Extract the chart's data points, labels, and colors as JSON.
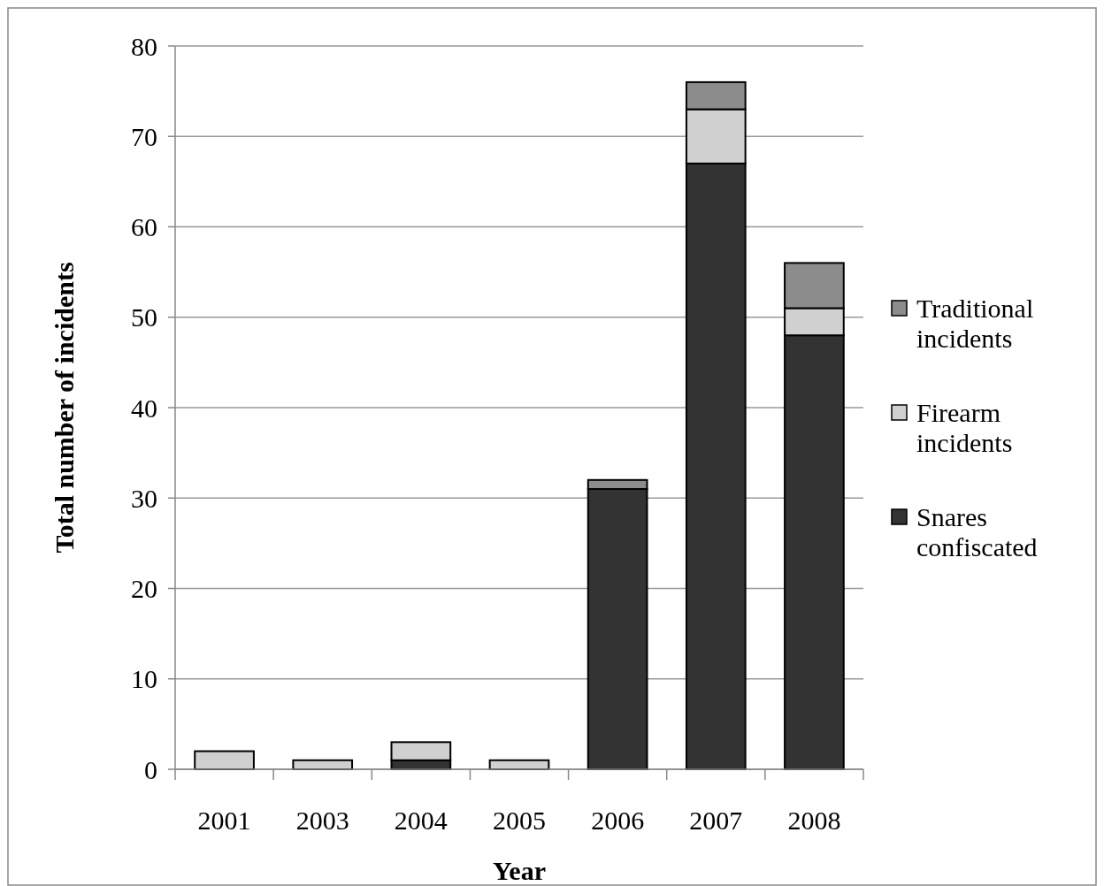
{
  "chart_data": {
    "type": "bar",
    "stacked": true,
    "xlabel": "Year",
    "ylabel": "Total number of incidents",
    "categories": [
      "2001",
      "2003",
      "2004",
      "2005",
      "2006",
      "2007",
      "2008"
    ],
    "series": [
      {
        "name": "Snares confiscated",
        "color": "#333333",
        "values": [
          null,
          null,
          1,
          null,
          31,
          67,
          48
        ]
      },
      {
        "name": "Firearm incidents",
        "color": "#d0d0d0",
        "values": [
          2,
          1,
          2,
          1,
          null,
          6,
          3
        ]
      },
      {
        "name": "Traditional incidents",
        "color": "#8c8c8c",
        "values": [
          null,
          null,
          null,
          null,
          1,
          3,
          5
        ]
      }
    ],
    "ylim": [
      0,
      80
    ],
    "yticks": [
      0,
      10,
      20,
      30,
      40,
      50,
      60,
      70,
      80
    ],
    "grid": "y",
    "legend": "right"
  }
}
